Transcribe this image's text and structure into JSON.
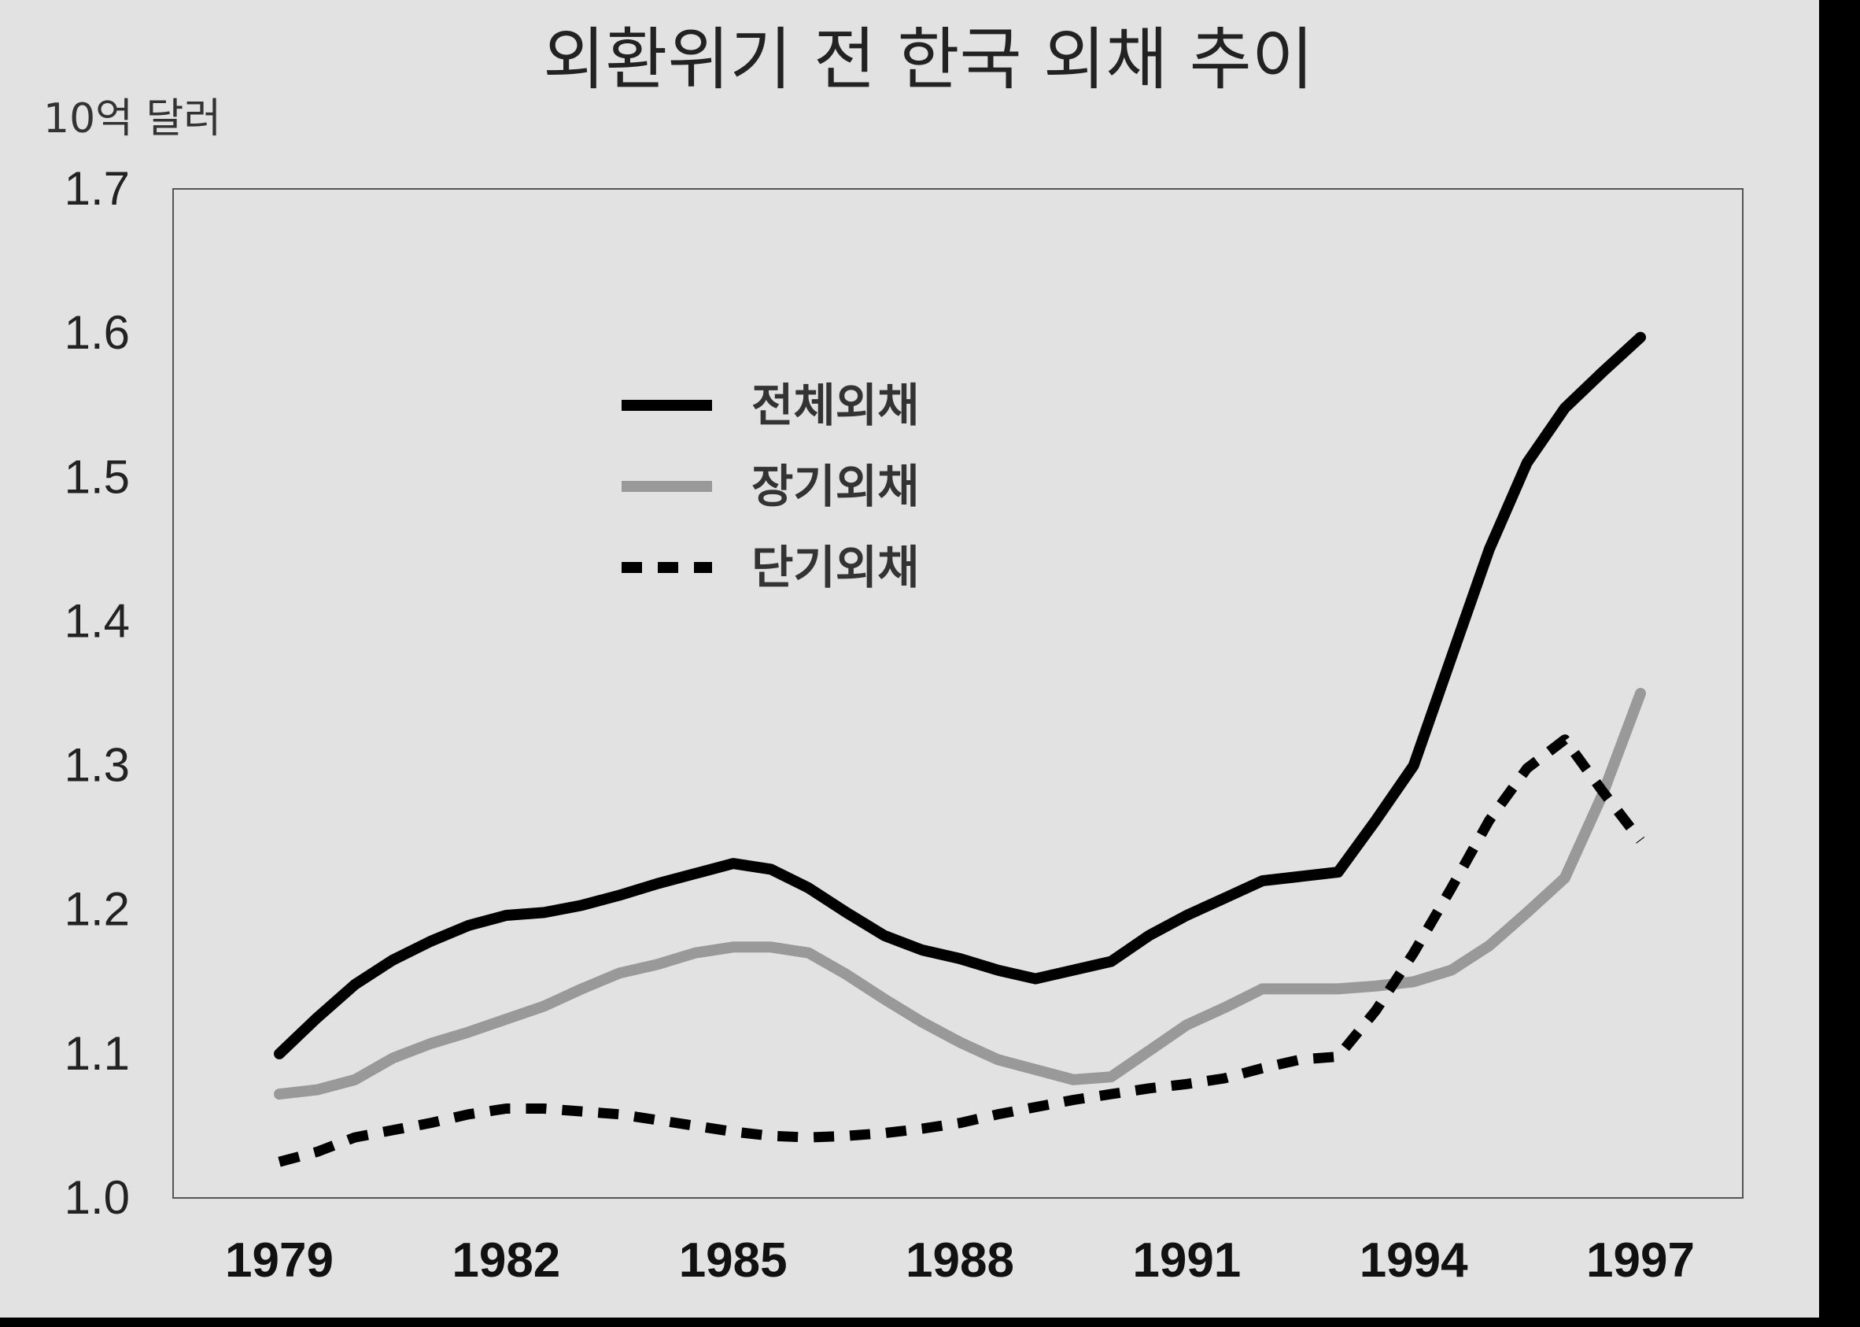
{
  "chart_data": {
    "type": "line",
    "title": "외환위기 전 한국 외채 추이",
    "ylabel": "10억 달러",
    "xlabel": "",
    "ylim": [
      1.0,
      1.7
    ],
    "yticks": [
      "1.7",
      "1.6",
      "1.5",
      "1.4",
      "1.3",
      "1.2",
      "1.1",
      "1.0"
    ],
    "xticks": [
      "1979",
      "1982",
      "1985",
      "1988",
      "1991",
      "1994",
      "1997"
    ],
    "xlim": [
      1979,
      1997
    ],
    "grid": false,
    "legend_position": "top-left",
    "series": [
      {
        "name": "전체외채",
        "color": "#000000",
        "style": "solid",
        "points": [
          [
            1979.0,
            1.1
          ],
          [
            1979.5,
            1.125
          ],
          [
            1980.0,
            1.148
          ],
          [
            1980.5,
            1.165
          ],
          [
            1981.0,
            1.178
          ],
          [
            1981.5,
            1.189
          ],
          [
            1982.0,
            1.196
          ],
          [
            1982.5,
            1.198
          ],
          [
            1983.0,
            1.203
          ],
          [
            1983.5,
            1.21
          ],
          [
            1984.0,
            1.218
          ],
          [
            1984.5,
            1.225
          ],
          [
            1985.0,
            1.232
          ],
          [
            1985.5,
            1.228
          ],
          [
            1986.0,
            1.215
          ],
          [
            1986.5,
            1.198
          ],
          [
            1987.0,
            1.182
          ],
          [
            1987.5,
            1.172
          ],
          [
            1988.0,
            1.166
          ],
          [
            1988.5,
            1.158
          ],
          [
            1989.0,
            1.152
          ],
          [
            1989.5,
            1.158
          ],
          [
            1990.0,
            1.164
          ],
          [
            1990.5,
            1.182
          ],
          [
            1991.0,
            1.196
          ],
          [
            1991.5,
            1.208
          ],
          [
            1992.0,
            1.22
          ],
          [
            1992.5,
            1.223
          ],
          [
            1993.0,
            1.226
          ],
          [
            1993.5,
            1.262
          ],
          [
            1994.0,
            1.3
          ],
          [
            1994.5,
            1.375
          ],
          [
            1995.0,
            1.45
          ],
          [
            1995.5,
            1.51
          ],
          [
            1996.0,
            1.548
          ],
          [
            1996.5,
            1.573
          ],
          [
            1997.0,
            1.597
          ]
        ]
      },
      {
        "name": "장기외채",
        "color": "#999999",
        "style": "solid",
        "points": [
          [
            1979.0,
            1.072
          ],
          [
            1979.5,
            1.075
          ],
          [
            1980.0,
            1.082
          ],
          [
            1980.5,
            1.097
          ],
          [
            1981.0,
            1.107
          ],
          [
            1981.5,
            1.115
          ],
          [
            1982.0,
            1.124
          ],
          [
            1982.5,
            1.133
          ],
          [
            1983.0,
            1.145
          ],
          [
            1983.5,
            1.156
          ],
          [
            1984.0,
            1.162
          ],
          [
            1984.5,
            1.17
          ],
          [
            1985.0,
            1.174
          ],
          [
            1985.5,
            1.174
          ],
          [
            1986.0,
            1.17
          ],
          [
            1986.5,
            1.155
          ],
          [
            1987.0,
            1.138
          ],
          [
            1987.5,
            1.122
          ],
          [
            1988.0,
            1.108
          ],
          [
            1988.5,
            1.096
          ],
          [
            1989.0,
            1.089
          ],
          [
            1989.5,
            1.082
          ],
          [
            1990.0,
            1.084
          ],
          [
            1990.5,
            1.102
          ],
          [
            1991.0,
            1.12
          ],
          [
            1991.5,
            1.132
          ],
          [
            1992.0,
            1.145
          ],
          [
            1992.5,
            1.145
          ],
          [
            1993.0,
            1.145
          ],
          [
            1993.5,
            1.147
          ],
          [
            1994.0,
            1.15
          ],
          [
            1994.5,
            1.158
          ],
          [
            1995.0,
            1.175
          ],
          [
            1995.5,
            1.198
          ],
          [
            1996.0,
            1.222
          ],
          [
            1996.5,
            1.28
          ],
          [
            1997.0,
            1.35
          ]
        ]
      },
      {
        "name": "단기외채",
        "color": "#000000",
        "style": "dashed",
        "points": [
          [
            1979.0,
            1.025
          ],
          [
            1979.5,
            1.032
          ],
          [
            1980.0,
            1.042
          ],
          [
            1980.5,
            1.047
          ],
          [
            1981.0,
            1.052
          ],
          [
            1981.5,
            1.058
          ],
          [
            1982.0,
            1.062
          ],
          [
            1982.5,
            1.062
          ],
          [
            1983.0,
            1.06
          ],
          [
            1983.5,
            1.058
          ],
          [
            1984.0,
            1.054
          ],
          [
            1984.5,
            1.05
          ],
          [
            1985.0,
            1.046
          ],
          [
            1985.5,
            1.043
          ],
          [
            1986.0,
            1.042
          ],
          [
            1986.5,
            1.043
          ],
          [
            1987.0,
            1.045
          ],
          [
            1987.5,
            1.048
          ],
          [
            1988.0,
            1.052
          ],
          [
            1988.5,
            1.058
          ],
          [
            1989.0,
            1.063
          ],
          [
            1989.5,
            1.068
          ],
          [
            1990.0,
            1.072
          ],
          [
            1990.5,
            1.076
          ],
          [
            1991.0,
            1.079
          ],
          [
            1991.5,
            1.083
          ],
          [
            1992.0,
            1.09
          ],
          [
            1992.5,
            1.096
          ],
          [
            1993.0,
            1.098
          ],
          [
            1993.5,
            1.13
          ],
          [
            1994.0,
            1.17
          ],
          [
            1994.5,
            1.215
          ],
          [
            1995.0,
            1.262
          ],
          [
            1995.5,
            1.298
          ],
          [
            1996.0,
            1.318
          ],
          [
            1996.5,
            1.282
          ],
          [
            1997.0,
            1.248
          ]
        ]
      }
    ]
  }
}
